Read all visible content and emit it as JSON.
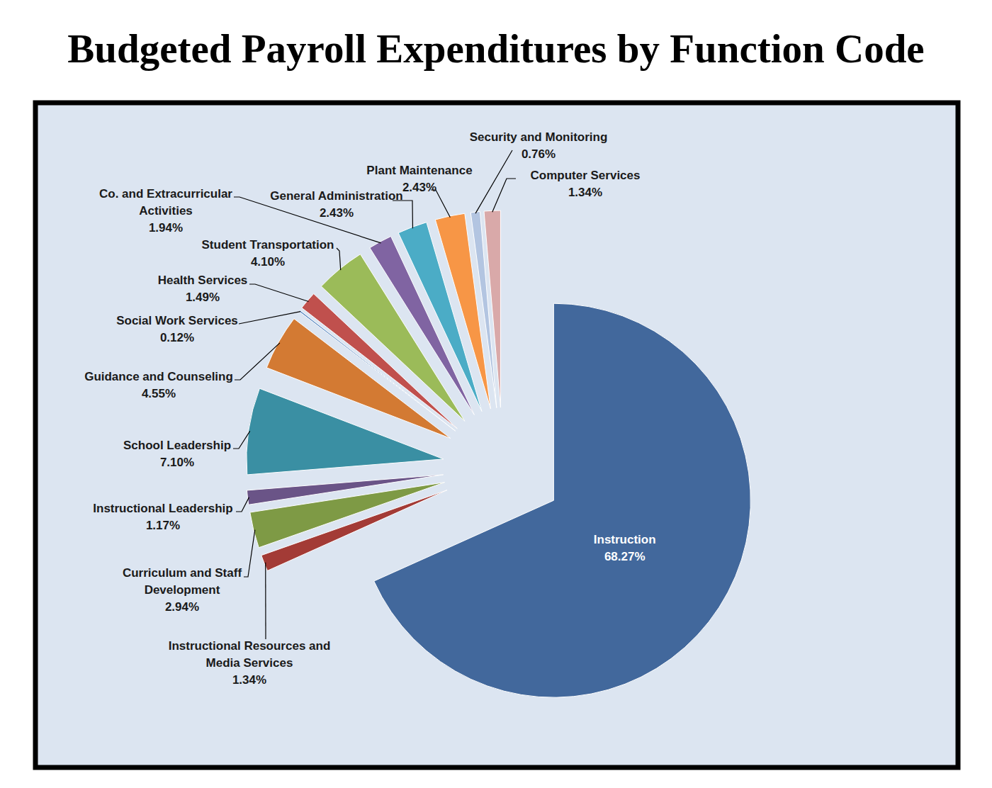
{
  "chart_data": {
    "type": "pie",
    "title": "Budgeted Payroll Expenditures by Function Code",
    "categories": [
      "Instruction",
      "Instructional Resources and Media Services",
      "Curriculum and Staff Development",
      "Instructional Leadership",
      "School Leadership",
      "Guidance and Counseling",
      "Social Work Services",
      "Health Services",
      "Student Transportation",
      "Co. and Extracurricular Activities",
      "General Administration",
      "Plant Maintenance",
      "Security and Monitoring",
      "Computer Services"
    ],
    "values": [
      68.27,
      1.34,
      2.94,
      1.17,
      7.1,
      4.55,
      0.12,
      1.49,
      4.1,
      1.94,
      2.43,
      2.43,
      0.76,
      1.34
    ],
    "value_labels": [
      "68.27%",
      "1.34%",
      "2.94%",
      "1.17%",
      "7.10%",
      "4.55%",
      "0.12%",
      "1.49%",
      "4.10%",
      "1.94%",
      "2.43%",
      "2.43%",
      "0.76%",
      "1.34%"
    ],
    "colors": [
      "#42689c",
      "#a33b36",
      "#7e9a45",
      "#6a5487",
      "#3a8fa3",
      "#d37a33",
      "#4f81bd",
      "#c0504d",
      "#9bbb59",
      "#8064a2",
      "#4bacc6",
      "#f79646",
      "#b3c5e1",
      "#d9a9a9"
    ],
    "data_labels": true
  }
}
